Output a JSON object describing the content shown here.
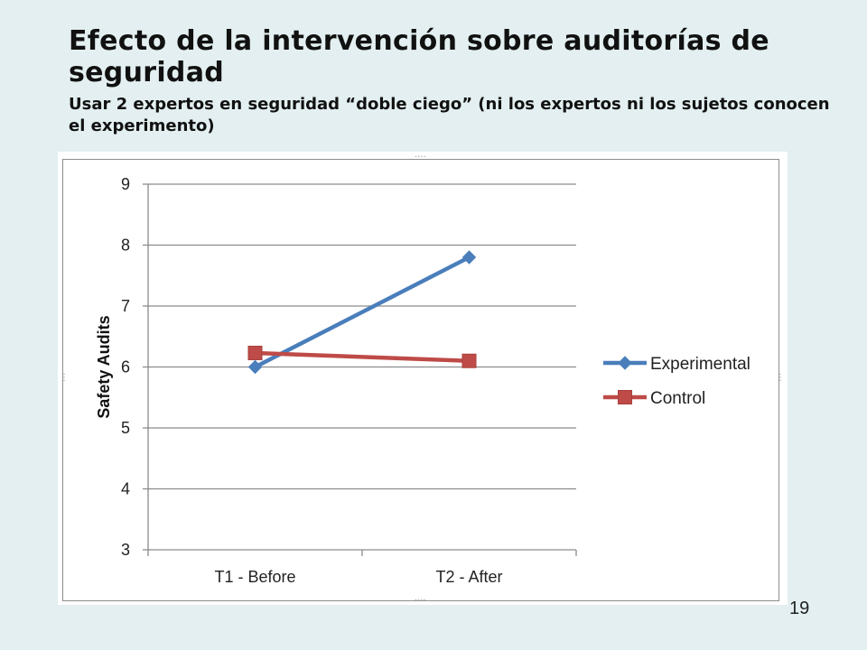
{
  "slide": {
    "title": "Efecto de la intervención sobre auditorías de seguridad",
    "subtitle": "Usar 2 expertos en seguridad “doble ciego” (ni los expertos ni los sujetos conocen el experimento)",
    "page_number": "19"
  },
  "chart_data": {
    "type": "line",
    "title": "",
    "xlabel": "",
    "ylabel": "Safety Audits",
    "categories": [
      "T1 - Before",
      "T2 - After"
    ],
    "ylim": [
      3,
      9
    ],
    "yticks": [
      3,
      4,
      5,
      6,
      7,
      8,
      9
    ],
    "grid": true,
    "legend_position": "right",
    "series": [
      {
        "name": "Experimental",
        "values": [
          6.0,
          7.8
        ],
        "color": "#4a7ebb",
        "marker": "diamond"
      },
      {
        "name": "Control",
        "values": [
          6.23,
          6.1
        ],
        "color": "#be4b48",
        "marker": "square"
      }
    ]
  }
}
